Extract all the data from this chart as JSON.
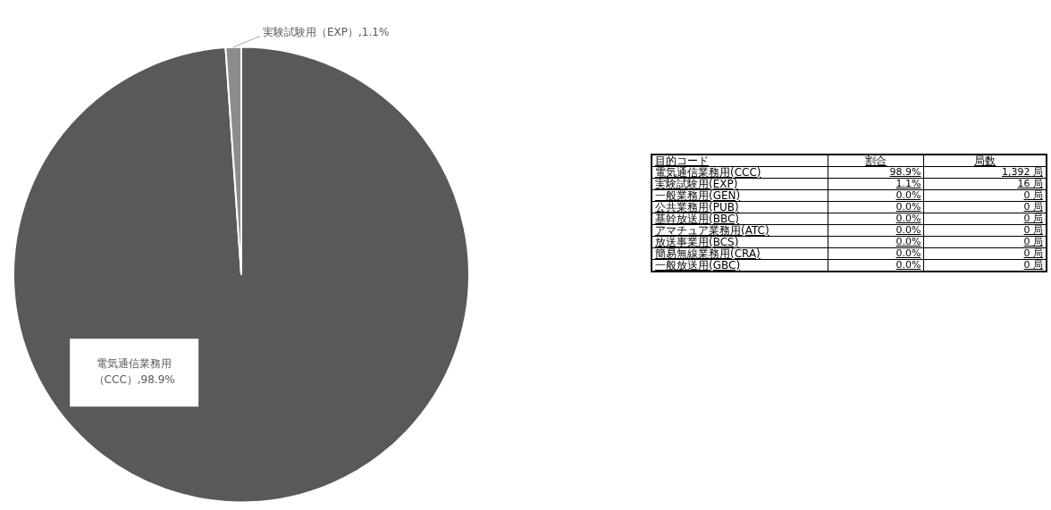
{
  "chart_data": [
    {
      "type": "pie",
      "categories": [
        "電気通信業務用（CCC）",
        "実験試験用（EXP）"
      ],
      "values": [
        98.9,
        1.1
      ],
      "colors": [
        "#595959",
        "#8c8c8c"
      ],
      "value_labels": [
        "98.9%",
        "1.1%"
      ]
    },
    {
      "type": "other",
      "annotations": [
        "目的コード",
        "割合",
        "局数",
        "電気通信業務用(CCC)",
        "98.9%",
        "1,392 局",
        "実験試験用(EXP)",
        "1.1%",
        "16 局",
        "一般業務用(GEN)",
        "0.0%",
        "0 局",
        "公共業務用(PUB)",
        "0.0%",
        "0 局",
        "基幹放送用(BBC)",
        "0.0%",
        "0 局",
        "アマチュア業務用(ATC)",
        "0.0%",
        "0 局",
        "放送事業用(BCS)",
        "0.0%",
        "0 局",
        "簡易無線業務用(CRA)",
        "0.0%",
        "0 局",
        "一般放送用(GBC)",
        "0.0%",
        "0 局"
      ]
    }
  ]
}
